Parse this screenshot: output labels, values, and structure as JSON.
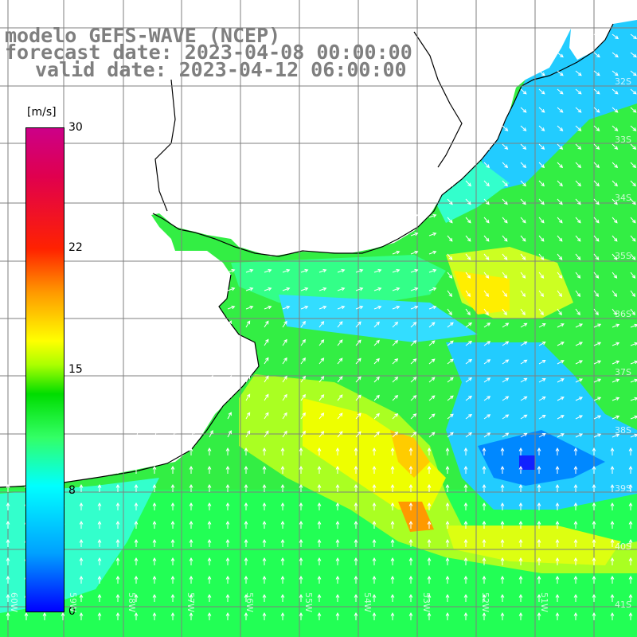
{
  "title": {
    "line1": "modelo GEFS-WAVE (NCEP)",
    "line2": "forecast date: 2023-04-08 00:00:00",
    "line3": "valid date: 2023-04-12 06:00:00"
  },
  "colorbar": {
    "unit": "[m/s]",
    "ticks": [
      "30",
      "22",
      "15",
      "8",
      "0"
    ],
    "range": [
      0,
      30
    ]
  },
  "grid": {
    "lat_labels": [
      "32S",
      "33S",
      "34S",
      "35S",
      "36S",
      "37S",
      "38S",
      "39S",
      "40S",
      "41S"
    ],
    "lon_labels": [
      "60W",
      "59W",
      "58W",
      "57W",
      "56W",
      "55W",
      "54W",
      "53W",
      "52W",
      "51W"
    ]
  },
  "colors": {
    "land": "#ffffff",
    "coast": "#000000",
    "grid": "#7f7f7f",
    "title": "#7f7f7f",
    "arrows": "#ffffff"
  }
}
